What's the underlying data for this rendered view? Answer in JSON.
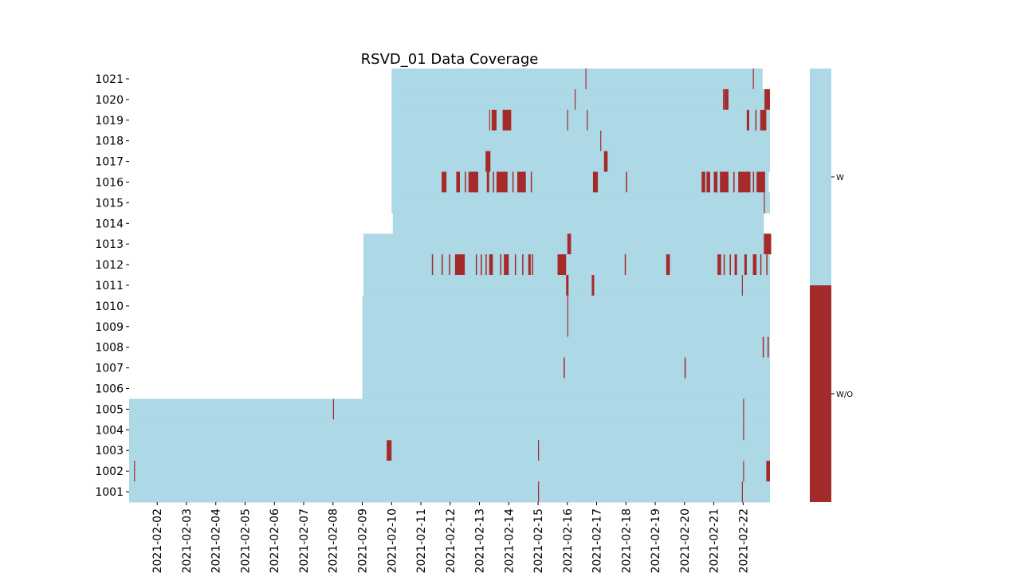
{
  "chart_data": {
    "type": "heatmap",
    "title": "RSVD_01 Data Coverage",
    "xlabel": "",
    "ylabel": "",
    "x_range": [
      "2021-02-01T01:00",
      "2021-02-22T22:00"
    ],
    "x_ticks": [
      "2021-02-02",
      "2021-02-03",
      "2021-02-04",
      "2021-02-05",
      "2021-02-06",
      "2021-02-07",
      "2021-02-08",
      "2021-02-09",
      "2021-02-10",
      "2021-02-11",
      "2021-02-12",
      "2021-02-13",
      "2021-02-14",
      "2021-02-15",
      "2021-02-16",
      "2021-02-17",
      "2021-02-18",
      "2021-02-19",
      "2021-02-20",
      "2021-02-21",
      "2021-02-22"
    ],
    "y_categories": [
      "1021",
      "1020",
      "1019",
      "1018",
      "1017",
      "1016",
      "1015",
      "1014",
      "1013",
      "1012",
      "1011",
      "1010",
      "1009",
      "1008",
      "1007",
      "1006",
      "1005",
      "1004",
      "1003",
      "1002",
      "1001"
    ],
    "colorbar": {
      "categories": [
        "W",
        "W/O"
      ],
      "colors": {
        "W": "#add8e6",
        "W/O": "#a52a2a"
      }
    },
    "grid": false,
    "rows": [
      {
        "id": "1021",
        "start": "2021-02-10T00:00",
        "end": "2021-02-22T16:00",
        "gaps": [
          [
            "2021-02-16T14:50",
            "2021-02-16T15:10"
          ],
          [
            "2021-02-22T08:00",
            "2021-02-22T08:20"
          ]
        ]
      },
      {
        "id": "1020",
        "start": "2021-02-10T00:00",
        "end": "2021-02-22T22:00",
        "gaps": [
          [
            "2021-02-16T06:00",
            "2021-02-16T06:20"
          ],
          [
            "2021-02-21T07:30",
            "2021-02-21T08:00"
          ],
          [
            "2021-02-21T08:30",
            "2021-02-21T12:00"
          ],
          [
            "2021-02-22T17:30",
            "2021-02-22T22:00"
          ]
        ]
      },
      {
        "id": "1019",
        "start": "2021-02-10T00:00",
        "end": "2021-02-22T22:00",
        "gaps": [
          [
            "2021-02-13T08:00",
            "2021-02-13T08:30"
          ],
          [
            "2021-02-13T10:00",
            "2021-02-13T14:00"
          ],
          [
            "2021-02-13T19:00",
            "2021-02-14T02:00"
          ],
          [
            "2021-02-15T23:50",
            "2021-02-16T00:20"
          ],
          [
            "2021-02-16T16:00",
            "2021-02-16T16:30"
          ],
          [
            "2021-02-22T03:00",
            "2021-02-22T05:00"
          ],
          [
            "2021-02-22T10:00",
            "2021-02-22T11:00"
          ],
          [
            "2021-02-22T14:00",
            "2021-02-22T19:00"
          ]
        ]
      },
      {
        "id": "1018",
        "start": "2021-02-10T00:00",
        "end": "2021-02-22T22:00",
        "gaps": [
          [
            "2021-02-17T03:00",
            "2021-02-17T03:30"
          ]
        ]
      },
      {
        "id": "1017",
        "start": "2021-02-10T00:00",
        "end": "2021-02-22T23:30",
        "gaps": [
          [
            "2021-02-13T05:00",
            "2021-02-13T09:00"
          ],
          [
            "2021-02-17T06:00",
            "2021-02-17T09:00"
          ]
        ]
      },
      {
        "id": "1016",
        "start": "2021-02-10T00:00",
        "end": "2021-02-22T21:00",
        "gaps": [
          [
            "2021-02-11T17:00",
            "2021-02-11T21:00"
          ],
          [
            "2021-02-12T05:00",
            "2021-02-12T08:00"
          ],
          [
            "2021-02-12T12:00",
            "2021-02-12T13:00"
          ],
          [
            "2021-02-12T15:00",
            "2021-02-12T23:00"
          ],
          [
            "2021-02-13T06:00",
            "2021-02-13T08:00"
          ],
          [
            "2021-02-13T11:00",
            "2021-02-13T12:00"
          ],
          [
            "2021-02-13T14:00",
            "2021-02-13T23:00"
          ],
          [
            "2021-02-14T03:00",
            "2021-02-14T04:00"
          ],
          [
            "2021-02-14T07:00",
            "2021-02-14T14:00"
          ],
          [
            "2021-02-14T18:00",
            "2021-02-14T19:00"
          ],
          [
            "2021-02-16T21:00",
            "2021-02-17T01:00"
          ],
          [
            "2021-02-18T00:00",
            "2021-02-18T01:00"
          ],
          [
            "2021-02-20T14:00",
            "2021-02-20T17:00"
          ],
          [
            "2021-02-20T18:00",
            "2021-02-20T21:00"
          ],
          [
            "2021-02-21T00:00",
            "2021-02-21T03:00"
          ],
          [
            "2021-02-21T05:00",
            "2021-02-21T12:00"
          ],
          [
            "2021-02-21T16:00",
            "2021-02-21T17:00"
          ],
          [
            "2021-02-21T20:00",
            "2021-02-22T06:00"
          ],
          [
            "2021-02-22T08:00",
            "2021-02-22T09:00"
          ],
          [
            "2021-02-22T11:00",
            "2021-02-22T18:00"
          ]
        ]
      },
      {
        "id": "1015",
        "start": "2021-02-10T00:00",
        "end": "2021-02-22T23:30",
        "gaps": [
          [
            "2021-02-22T17:00",
            "2021-02-22T17:30"
          ]
        ]
      },
      {
        "id": "1014",
        "start": "2021-02-10T01:00",
        "end": "2021-02-22T17:00",
        "gaps": []
      },
      {
        "id": "1013",
        "start": "2021-02-09T01:00",
        "end": "2021-02-22T23:00",
        "gaps": [
          [
            "2021-02-16T00:00",
            "2021-02-16T03:00"
          ],
          [
            "2021-02-22T17:00",
            "2021-02-22T23:00"
          ]
        ]
      },
      {
        "id": "1012",
        "start": "2021-02-09T01:00",
        "end": "2021-02-22T22:00",
        "gaps": [
          [
            "2021-02-11T09:00",
            "2021-02-11T10:00"
          ],
          [
            "2021-02-11T17:00",
            "2021-02-11T18:00"
          ],
          [
            "2021-02-11T23:00",
            "2021-02-12T00:00"
          ],
          [
            "2021-02-12T04:00",
            "2021-02-12T12:00"
          ],
          [
            "2021-02-12T21:00",
            "2021-02-12T22:00"
          ],
          [
            "2021-02-13T01:00",
            "2021-02-13T02:00"
          ],
          [
            "2021-02-13T05:00",
            "2021-02-13T06:00"
          ],
          [
            "2021-02-13T08:00",
            "2021-02-13T11:00"
          ],
          [
            "2021-02-13T17:00",
            "2021-02-13T18:00"
          ],
          [
            "2021-02-13T20:00",
            "2021-02-14T00:00"
          ],
          [
            "2021-02-14T05:00",
            "2021-02-14T06:00"
          ],
          [
            "2021-02-14T11:00",
            "2021-02-14T12:00"
          ],
          [
            "2021-02-14T16:00",
            "2021-02-14T18:00"
          ],
          [
            "2021-02-14T19:00",
            "2021-02-14T20:00"
          ],
          [
            "2021-02-15T16:00",
            "2021-02-15T23:00"
          ],
          [
            "2021-02-17T23:00",
            "2021-02-18T00:00"
          ],
          [
            "2021-02-19T09:00",
            "2021-02-19T12:00"
          ],
          [
            "2021-02-21T03:00",
            "2021-02-21T06:00"
          ],
          [
            "2021-02-21T08:00",
            "2021-02-21T09:00"
          ],
          [
            "2021-02-21T13:00",
            "2021-02-21T14:00"
          ],
          [
            "2021-02-21T17:00",
            "2021-02-21T19:00"
          ],
          [
            "2021-02-22T01:00",
            "2021-02-22T03:00"
          ],
          [
            "2021-02-22T08:00",
            "2021-02-22T11:00"
          ],
          [
            "2021-02-22T14:00",
            "2021-02-22T15:00"
          ],
          [
            "2021-02-22T19:00",
            "2021-02-22T20:00"
          ]
        ]
      },
      {
        "id": "1011",
        "start": "2021-02-09T01:00",
        "end": "2021-02-22T23:00",
        "gaps": [
          [
            "2021-02-15T23:00",
            "2021-02-16T01:00"
          ],
          [
            "2021-02-16T20:00",
            "2021-02-16T22:00"
          ],
          [
            "2021-02-21T23:00",
            "2021-02-21T23:20"
          ]
        ]
      },
      {
        "id": "1010",
        "start": "2021-02-09T00:00",
        "end": "2021-02-22T23:00",
        "gaps": [
          [
            "2021-02-16T00:00",
            "2021-02-16T00:20"
          ]
        ]
      },
      {
        "id": "1009",
        "start": "2021-02-09T00:00",
        "end": "2021-02-22T23:00",
        "gaps": [
          [
            "2021-02-16T00:00",
            "2021-02-16T00:20"
          ]
        ]
      },
      {
        "id": "1008",
        "start": "2021-02-09T00:00",
        "end": "2021-02-22T22:00",
        "gaps": [
          [
            "2021-02-22T16:00",
            "2021-02-22T17:00"
          ],
          [
            "2021-02-22T20:00",
            "2021-02-22T21:00"
          ]
        ]
      },
      {
        "id": "1007",
        "start": "2021-02-09T00:00",
        "end": "2021-02-22T22:00",
        "gaps": [
          [
            "2021-02-15T21:00",
            "2021-02-15T22:00"
          ],
          [
            "2021-02-20T00:00",
            "2021-02-20T01:00"
          ]
        ]
      },
      {
        "id": "1006",
        "start": "2021-02-09T00:00",
        "end": "2021-02-22T23:00",
        "gaps": []
      },
      {
        "id": "1005",
        "start": "2021-02-01T01:00",
        "end": "2021-02-22T23:00",
        "gaps": [
          [
            "2021-02-08T00:00",
            "2021-02-08T00:20"
          ],
          [
            "2021-02-22T00:00",
            "2021-02-22T00:20"
          ]
        ]
      },
      {
        "id": "1004",
        "start": "2021-02-01T01:00",
        "end": "2021-02-22T22:00",
        "gaps": [
          [
            "2021-02-22T00:00",
            "2021-02-22T00:20"
          ]
        ]
      },
      {
        "id": "1003",
        "start": "2021-02-01T01:00",
        "end": "2021-02-22T23:00",
        "gaps": [
          [
            "2021-02-09T20:00",
            "2021-02-10T00:00"
          ],
          [
            "2021-02-15T00:00",
            "2021-02-15T00:20"
          ]
        ]
      },
      {
        "id": "1002",
        "start": "2021-02-01T01:00",
        "end": "2021-02-22T23:00",
        "gaps": [
          [
            "2021-02-01T05:00",
            "2021-02-01T05:20"
          ],
          [
            "2021-02-22T00:00",
            "2021-02-22T00:20"
          ],
          [
            "2021-02-22T19:00",
            "2021-02-22T22:00"
          ]
        ]
      },
      {
        "id": "1001",
        "start": "2021-02-01T01:00",
        "end": "2021-02-22T23:00",
        "gaps": [
          [
            "2021-02-15T00:00",
            "2021-02-15T00:20"
          ],
          [
            "2021-02-21T23:00",
            "2021-02-21T23:20"
          ]
        ]
      }
    ]
  }
}
